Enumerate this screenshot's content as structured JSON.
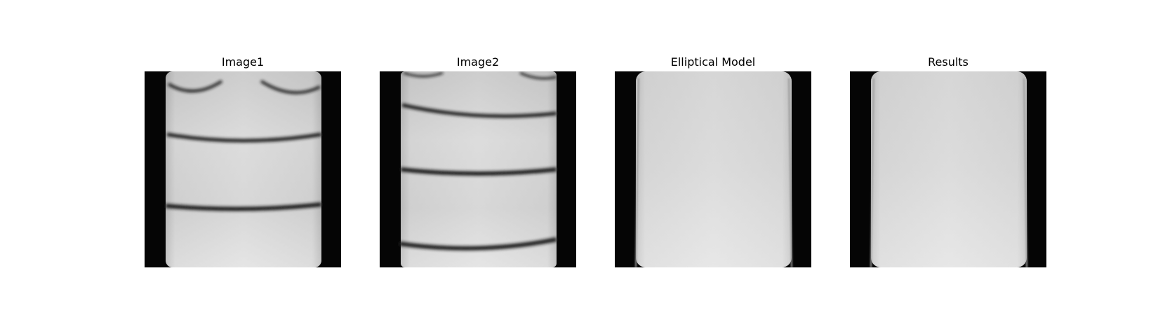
{
  "figure": {
    "panels": [
      {
        "title": "Image1"
      },
      {
        "title": "Image2"
      },
      {
        "title": "Elliptical Model"
      },
      {
        "title": "Results"
      }
    ],
    "colors": {
      "background": "#ffffff",
      "border": "#050505",
      "tissue_light": "#e6e6e6",
      "tissue_mid": "#c8c8c8",
      "band_dark": "#1a1a1a"
    }
  }
}
